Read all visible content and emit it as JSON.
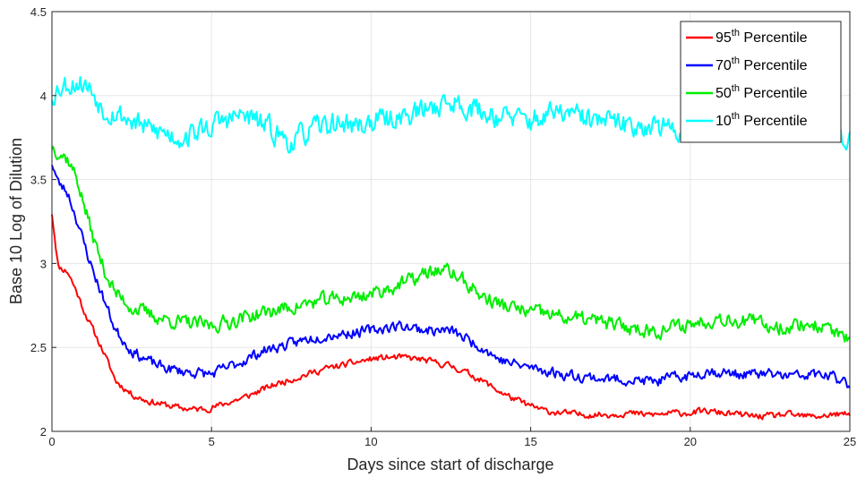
{
  "chart_data": {
    "type": "line",
    "title": "",
    "xlabel": "Days since start of discharge",
    "ylabel": "Base 10 Log of Dilution",
    "xlim": [
      0,
      25
    ],
    "ylim": [
      2,
      4.5
    ],
    "xticks": [
      "0",
      "5",
      "10",
      "15",
      "20",
      "25"
    ],
    "yticks": [
      "2",
      "2.5",
      "3",
      "3.5",
      "4",
      "4.5"
    ],
    "grid": true,
    "legend_position": "top-right",
    "series": [
      {
        "name": "95th Percentile",
        "name_base": "95",
        "name_sup": "th",
        "name_rest": " Percentile",
        "color": "#ff0000",
        "x": [
          0,
          0.2,
          0.5,
          0.8,
          1.0,
          1.3,
          1.6,
          2.0,
          2.5,
          3.0,
          3.5,
          4.0,
          4.5,
          5.0,
          5.5,
          6.0,
          6.5,
          7.0,
          7.5,
          8.0,
          8.5,
          9.0,
          9.5,
          10.0,
          10.5,
          11.0,
          11.5,
          12.0,
          12.5,
          13.0,
          13.5,
          14.0,
          14.5,
          15.0,
          15.5,
          16.0,
          16.5,
          17.0,
          17.5,
          18.0,
          18.5,
          19.0,
          19.5,
          20.0,
          20.5,
          21.0,
          21.5,
          22.0,
          22.5,
          23.0,
          23.5,
          24.0,
          24.5,
          25.0
        ],
        "y": [
          3.3,
          2.98,
          2.95,
          2.82,
          2.72,
          2.6,
          2.48,
          2.3,
          2.22,
          2.18,
          2.16,
          2.14,
          2.13,
          2.14,
          2.17,
          2.2,
          2.24,
          2.28,
          2.31,
          2.34,
          2.37,
          2.39,
          2.41,
          2.43,
          2.44,
          2.44,
          2.43,
          2.41,
          2.39,
          2.35,
          2.3,
          2.24,
          2.19,
          2.15,
          2.12,
          2.11,
          2.1,
          2.1,
          2.1,
          2.11,
          2.1,
          2.1,
          2.11,
          2.11,
          2.12,
          2.11,
          2.1,
          2.09,
          2.09,
          2.1,
          2.09,
          2.09,
          2.1,
          2.1
        ],
        "noise": 0.03,
        "seed": 11
      },
      {
        "name": "70th Percentile",
        "name_base": "70",
        "name_sup": "th",
        "name_rest": " Percentile",
        "color": "#0000ff",
        "x": [
          0,
          0.2,
          0.5,
          0.8,
          1.0,
          1.3,
          1.6,
          2.0,
          2.5,
          3.0,
          3.5,
          4.0,
          4.5,
          5.0,
          5.5,
          6.0,
          6.5,
          7.0,
          7.5,
          8.0,
          8.5,
          9.0,
          9.5,
          10.0,
          10.5,
          11.0,
          11.5,
          12.0,
          12.5,
          13.0,
          13.5,
          14.0,
          14.5,
          15.0,
          15.5,
          16.0,
          16.5,
          17.0,
          17.5,
          18.0,
          18.5,
          19.0,
          19.5,
          20.0,
          20.5,
          21.0,
          21.5,
          22.0,
          22.5,
          23.0,
          23.5,
          24.0,
          24.5,
          25.0
        ],
        "y": [
          3.6,
          3.48,
          3.42,
          3.25,
          3.12,
          2.95,
          2.8,
          2.6,
          2.48,
          2.42,
          2.38,
          2.36,
          2.35,
          2.34,
          2.38,
          2.42,
          2.47,
          2.5,
          2.52,
          2.55,
          2.57,
          2.58,
          2.59,
          2.6,
          2.62,
          2.63,
          2.61,
          2.6,
          2.6,
          2.55,
          2.5,
          2.43,
          2.4,
          2.38,
          2.36,
          2.34,
          2.33,
          2.32,
          2.31,
          2.31,
          2.3,
          2.3,
          2.32,
          2.33,
          2.36,
          2.35,
          2.34,
          2.34,
          2.34,
          2.33,
          2.33,
          2.34,
          2.32,
          2.28
        ],
        "noise": 0.05,
        "seed": 23
      },
      {
        "name": "50th Percentile",
        "name_base": "50",
        "name_sup": "th",
        "name_rest": " Percentile",
        "color": "#00ee00",
        "x": [
          0,
          0.2,
          0.5,
          0.8,
          1.0,
          1.3,
          1.6,
          2.0,
          2.5,
          3.0,
          3.5,
          4.0,
          4.5,
          5.0,
          5.5,
          6.0,
          6.5,
          7.0,
          7.5,
          8.0,
          8.5,
          9.0,
          9.5,
          10.0,
          10.5,
          11.0,
          11.5,
          12.0,
          12.5,
          13.0,
          13.5,
          14.0,
          14.5,
          15.0,
          15.5,
          16.0,
          16.5,
          17.0,
          17.5,
          18.0,
          18.5,
          19.0,
          19.5,
          20.0,
          20.5,
          21.0,
          21.5,
          22.0,
          22.5,
          23.0,
          23.5,
          24.0,
          24.5,
          25.0
        ],
        "y": [
          3.7,
          3.67,
          3.62,
          3.5,
          3.35,
          3.15,
          2.98,
          2.82,
          2.74,
          2.7,
          2.67,
          2.65,
          2.64,
          2.63,
          2.65,
          2.68,
          2.7,
          2.72,
          2.74,
          2.76,
          2.78,
          2.79,
          2.8,
          2.82,
          2.85,
          2.88,
          2.92,
          2.96,
          2.95,
          2.88,
          2.8,
          2.76,
          2.73,
          2.71,
          2.7,
          2.68,
          2.67,
          2.66,
          2.64,
          2.62,
          2.61,
          2.6,
          2.62,
          2.64,
          2.66,
          2.68,
          2.66,
          2.65,
          2.63,
          2.62,
          2.64,
          2.63,
          2.6,
          2.53
        ],
        "noise": 0.07,
        "seed": 37
      },
      {
        "name": "10th Percentile",
        "name_base": "10",
        "name_sup": "th",
        "name_rest": " Percentile",
        "color": "#00ffff",
        "x": [
          0,
          0.2,
          0.5,
          0.8,
          1.0,
          1.3,
          1.6,
          2.0,
          2.5,
          3.0,
          3.5,
          4.0,
          4.5,
          5.0,
          5.5,
          6.0,
          6.5,
          7.0,
          7.5,
          8.0,
          8.5,
          9.0,
          9.5,
          10.0,
          10.5,
          11.0,
          11.5,
          12.0,
          12.5,
          13.0,
          13.5,
          14.0,
          14.5,
          15.0,
          15.5,
          16.0,
          16.5,
          17.0,
          17.5,
          18.0,
          18.5,
          19.0,
          19.5,
          20.0,
          20.5,
          21.0,
          21.5,
          22.0,
          22.5,
          23.0,
          23.5,
          24.0,
          24.5,
          25.0
        ],
        "y": [
          4.0,
          4.05,
          4.07,
          4.08,
          4.07,
          4.02,
          3.92,
          3.9,
          3.85,
          3.8,
          3.78,
          3.75,
          3.78,
          3.82,
          3.86,
          3.88,
          3.84,
          3.78,
          3.72,
          3.78,
          3.82,
          3.84,
          3.82,
          3.84,
          3.86,
          3.88,
          3.9,
          3.94,
          3.96,
          3.94,
          3.9,
          3.88,
          3.86,
          3.85,
          3.88,
          3.9,
          3.87,
          3.85,
          3.84,
          3.82,
          3.83,
          3.82,
          3.78,
          3.82,
          3.8,
          3.84,
          3.85,
          3.86,
          3.86,
          3.84,
          3.83,
          3.8,
          3.78,
          3.74
        ],
        "noise": 0.11,
        "seed": 53
      }
    ]
  }
}
